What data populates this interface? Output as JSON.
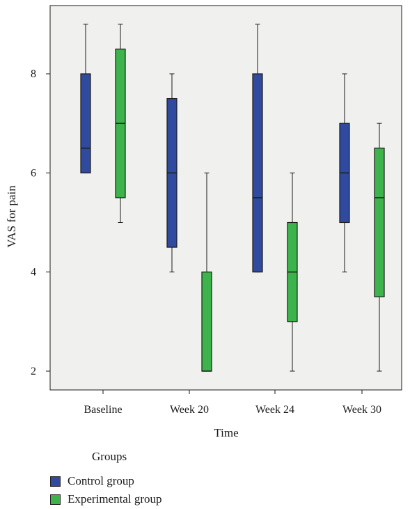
{
  "chart_data": {
    "type": "boxplot",
    "categories": [
      "Baseline",
      "Week 20",
      "Week 24",
      "Week 30"
    ],
    "xlabel": "Time",
    "ylabel": "VAS for pain",
    "yticks": [
      2,
      4,
      6,
      8
    ],
    "ylim": [
      1.5,
      9.3
    ],
    "grid": false,
    "legend_title": "Groups",
    "legend_position": "bottom-left",
    "series": [
      {
        "name": "Control group",
        "color": "#2f4a9e",
        "boxes": [
          {
            "min": 6,
            "q1": 6,
            "median": 6.5,
            "q3": 8,
            "max": 9
          },
          {
            "min": 4,
            "q1": 4.5,
            "median": 6,
            "q3": 7.5,
            "max": 8
          },
          {
            "min": 4,
            "q1": 4,
            "median": 5.5,
            "q3": 8,
            "max": 9
          },
          {
            "min": 4,
            "q1": 5,
            "median": 6,
            "q3": 7,
            "max": 8
          }
        ]
      },
      {
        "name": "Experimental group",
        "color": "#3cb44b",
        "boxes": [
          {
            "min": 5,
            "q1": 5.5,
            "median": 7,
            "q3": 8.5,
            "max": 9
          },
          {
            "min": 2,
            "q1": 2,
            "median": 2,
            "q3": 4,
            "max": 6
          },
          {
            "min": 2,
            "q1": 3,
            "median": 4,
            "q3": 5,
            "max": 6
          },
          {
            "min": 2,
            "q1": 3.5,
            "median": 5.5,
            "q3": 6.5,
            "max": 7
          }
        ]
      }
    ],
    "plot_background": "#f0f0ee"
  }
}
